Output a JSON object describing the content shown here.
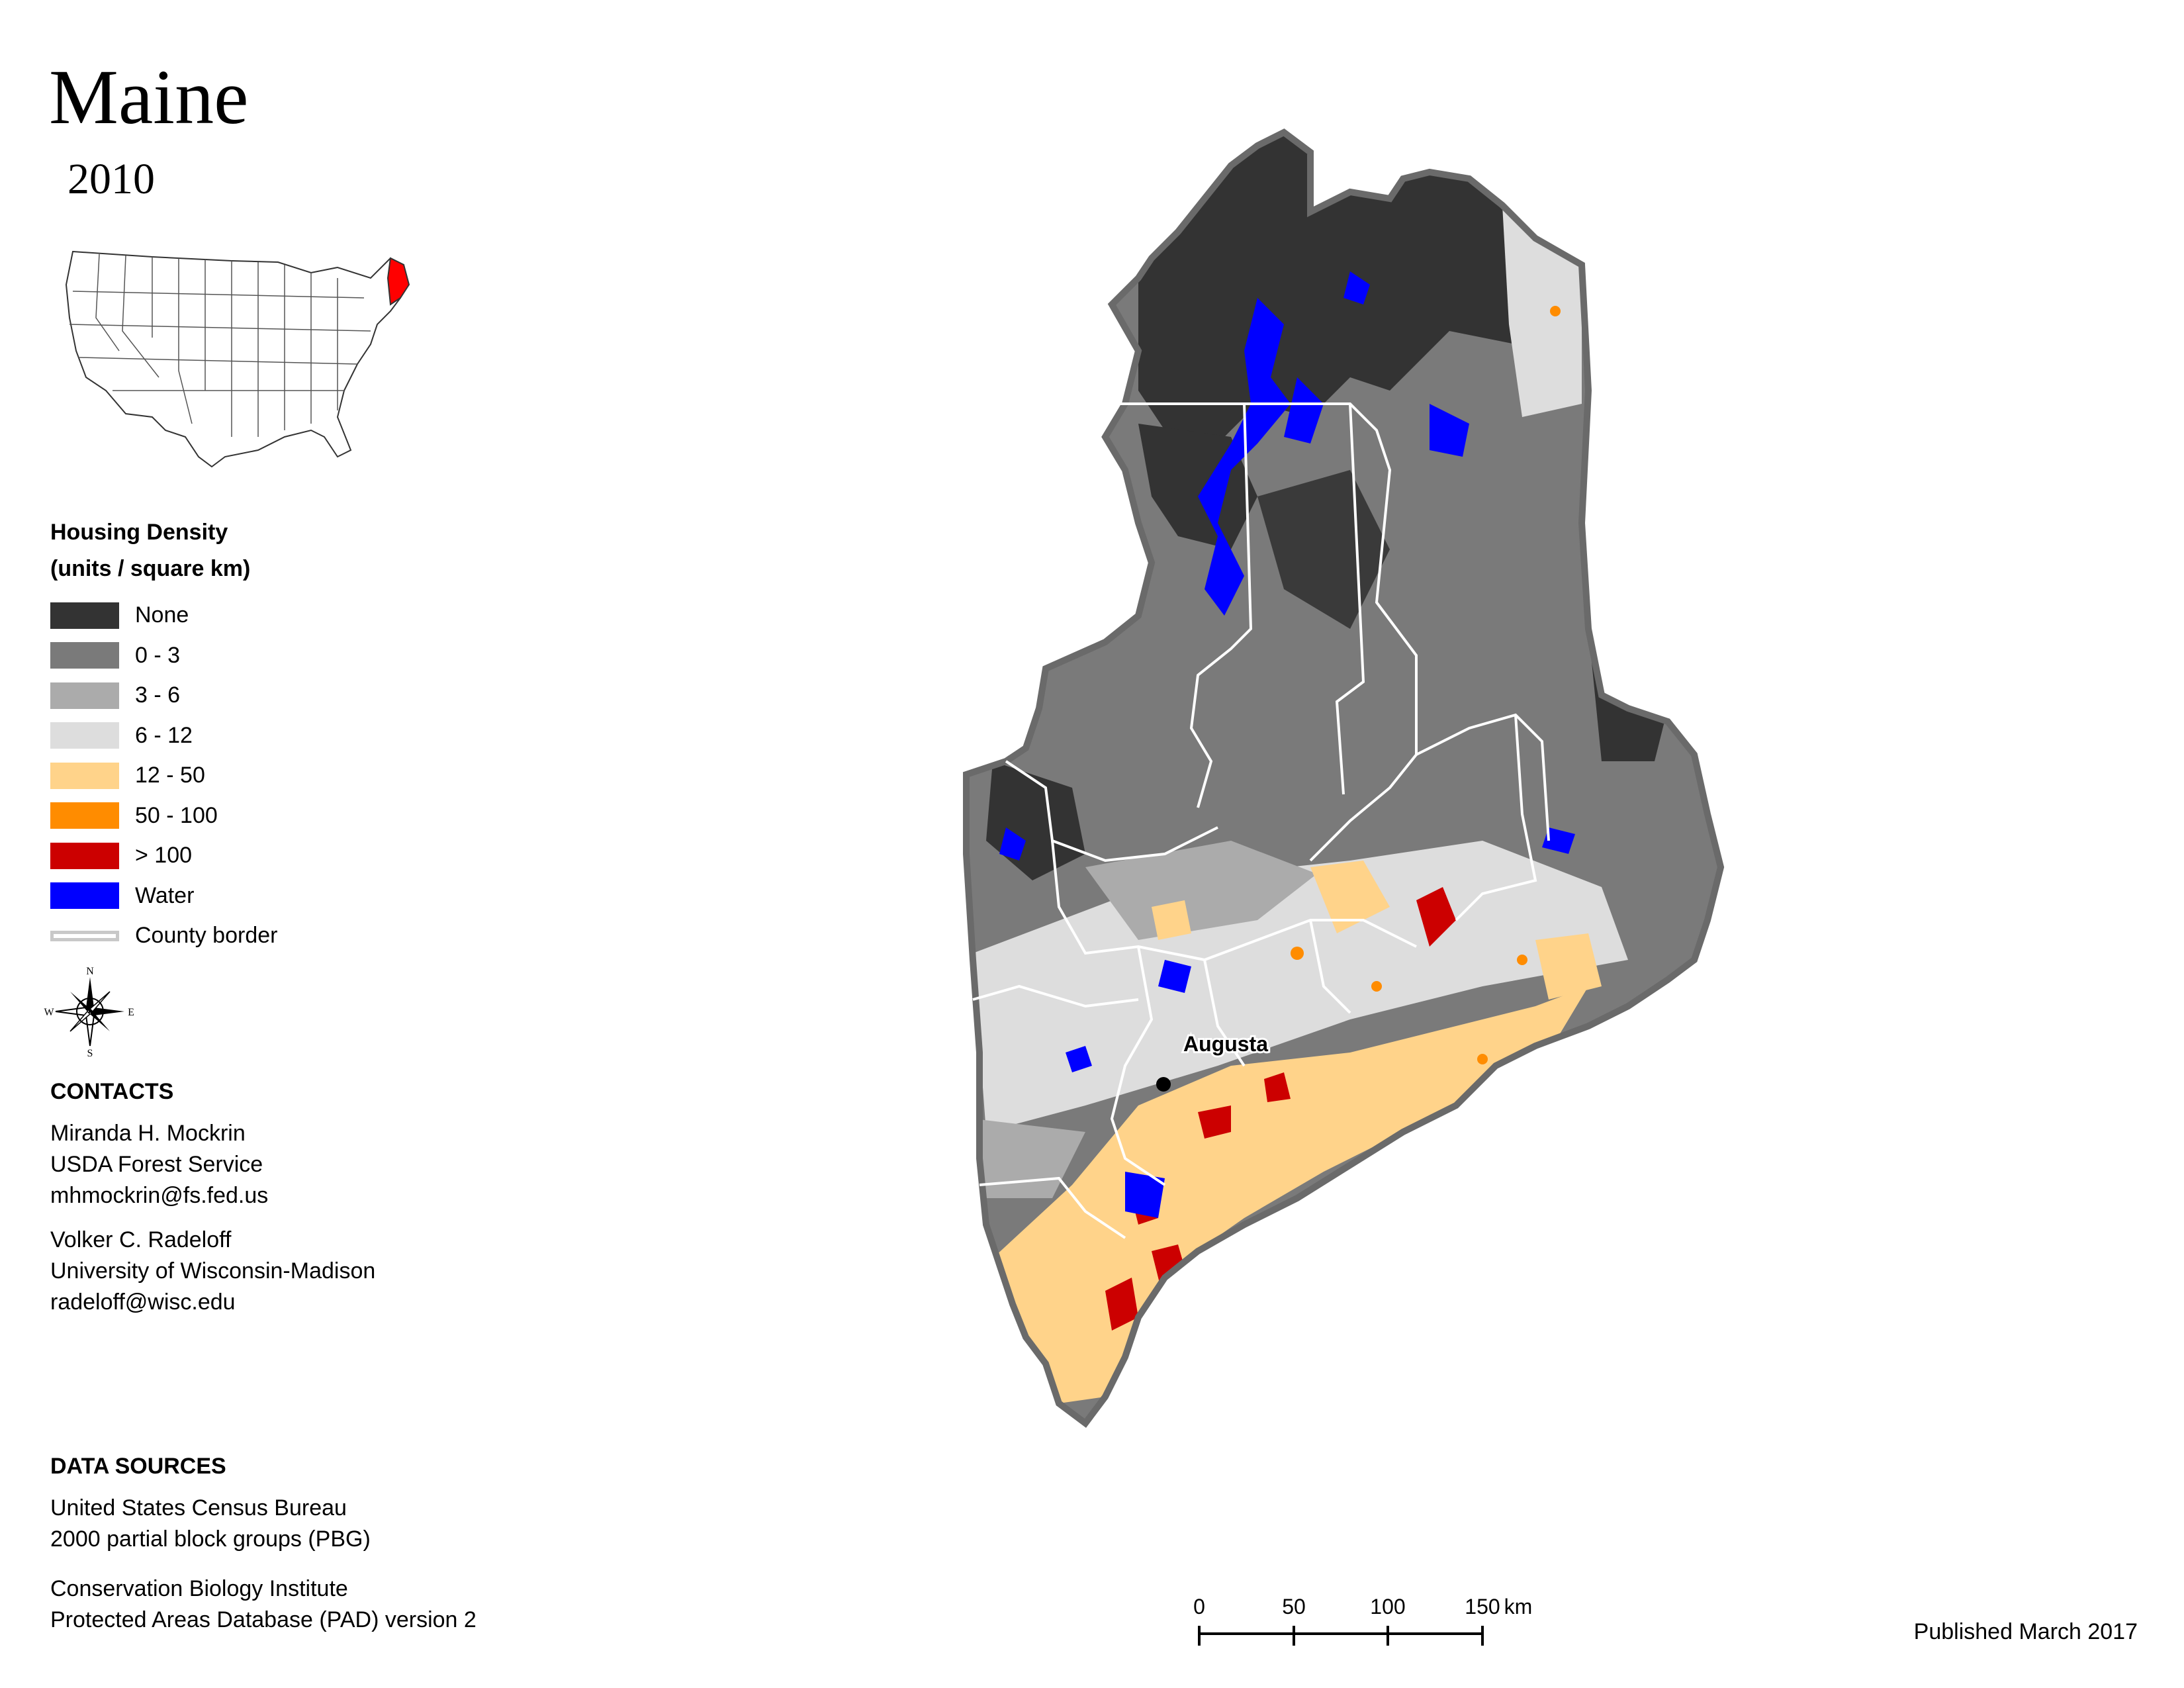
{
  "title": "Maine",
  "year": "2010",
  "legend": {
    "title_line1": "Housing Density",
    "title_line2": "(units / square km)",
    "items": [
      {
        "label": "None",
        "color": "#333333"
      },
      {
        "label": "0 - 3",
        "color": "#7a7a7a"
      },
      {
        "label": "3 - 6",
        "color": "#ababab"
      },
      {
        "label": "6 - 12",
        "color": "#dddddd"
      },
      {
        "label": "12 - 50",
        "color": "#ffd38a"
      },
      {
        "label": "50 - 100",
        "color": "#ff8c00"
      },
      {
        "label": "> 100",
        "color": "#cc0000"
      },
      {
        "label": "Water",
        "color": "#0000ff"
      }
    ],
    "border_label": "County border"
  },
  "compass": {
    "n": "N",
    "s": "S",
    "e": "E",
    "w": "W"
  },
  "contacts": {
    "title": "CONTACTS",
    "person1": {
      "name": "Miranda H. Mockrin",
      "org": "USDA Forest Service",
      "email": "mhmockrin@fs.fed.us"
    },
    "person2": {
      "name": "Volker C. Radeloff",
      "org": "University of Wisconsin-Madison",
      "email": "radeloff@wisc.edu"
    }
  },
  "data_sources": {
    "title": "DATA SOURCES",
    "source1_line1": "United States Census Bureau",
    "source1_line2": "2000 partial block groups (PBG)",
    "source2_line1": "Conservation Biology Institute",
    "source2_line2": "Protected Areas Database (PAD) version 2"
  },
  "map": {
    "city_label": "Augusta"
  },
  "scale": {
    "ticks": [
      "0",
      "50",
      "100",
      "150"
    ],
    "unit": "km"
  },
  "published": "Published March 2017"
}
